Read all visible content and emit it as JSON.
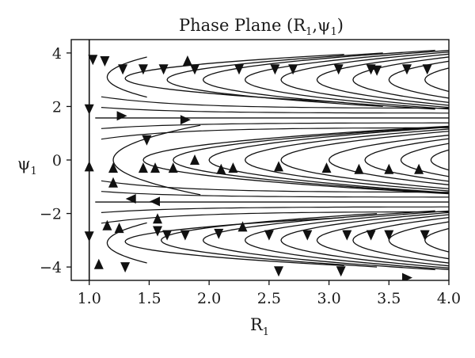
{
  "chart_data": {
    "type": "streamplot",
    "title_parts": [
      "Phase Plane (R",
      "1",
      ",ψ",
      "1",
      ")"
    ],
    "xlabel_parts": [
      "R",
      "1"
    ],
    "ylabel_parts": [
      "ψ",
      "1"
    ],
    "xlim": [
      0.85,
      4.0
    ],
    "ylim": [
      -4.5,
      4.5
    ],
    "xticks": [
      1.0,
      1.5,
      2.0,
      2.5,
      3.0,
      3.5,
      4.0
    ],
    "xtick_labels": [
      "1.0",
      "1.5",
      "2.0",
      "2.5",
      "3.0",
      "3.5",
      "4.0"
    ],
    "yticks": [
      4,
      2,
      0,
      -2,
      -4
    ],
    "ytick_labels": [
      "4",
      "2",
      "0",
      "−2",
      "−4"
    ],
    "grid": false,
    "line_color": "#111111",
    "separatrices_psi": [
      1.5708,
      -1.5708
    ],
    "vertical_line_r": 1.0,
    "streamlines": [
      {
        "shape": "parabola",
        "vertex": [
          1.15,
          3.1
        ],
        "kr": 0.0,
        "b": 0.95,
        "spread": 0.75,
        "dir": "down"
      },
      {
        "shape": "parabola",
        "vertex": [
          1.3,
          3.05
        ],
        "kr": 1.2,
        "b": 1.1,
        "spread": 0.9,
        "dir": "down"
      },
      {
        "shape": "parabola",
        "vertex": [
          1.65,
          3.0
        ],
        "kr": 1.0,
        "b": 1.2,
        "spread": 1.0,
        "dir": "down"
      },
      {
        "shape": "parabola",
        "vertex": [
          1.95,
          3.0
        ],
        "kr": 0.9,
        "b": 1.25,
        "spread": 1.1,
        "dir": "down"
      },
      {
        "shape": "parabola",
        "vertex": [
          2.3,
          3.0
        ],
        "kr": 0.8,
        "b": 1.3,
        "spread": 1.2,
        "dir": "down"
      },
      {
        "shape": "parabola",
        "vertex": [
          2.6,
          3.0
        ],
        "kr": 0.75,
        "b": 1.35,
        "spread": 1.25,
        "dir": "down"
      },
      {
        "shape": "parabola",
        "vertex": [
          2.9,
          3.0
        ],
        "kr": 0.7,
        "b": 1.4,
        "spread": 1.3,
        "dir": "down"
      },
      {
        "shape": "parabola",
        "vertex": [
          3.2,
          3.0
        ],
        "kr": 0.65,
        "b": 1.45,
        "spread": 1.35,
        "dir": "down"
      },
      {
        "shape": "parabola",
        "vertex": [
          3.5,
          3.0
        ],
        "kr": 0.6,
        "b": 1.45,
        "spread": 1.4,
        "dir": "down"
      },
      {
        "shape": "parabola",
        "vertex": [
          3.8,
          3.0
        ],
        "kr": 0.6,
        "b": 1.45,
        "spread": 1.4,
        "dir": "down"
      },
      {
        "shape": "parabola",
        "vertex": [
          1.2,
          0.0
        ],
        "kr": 0.0,
        "b": 1.3,
        "spread": 1.3,
        "dir": "up"
      },
      {
        "shape": "parabola",
        "vertex": [
          1.45,
          0.0
        ],
        "kr": 1.0,
        "b": 1.35,
        "spread": 1.3,
        "dir": "up"
      },
      {
        "shape": "parabola",
        "vertex": [
          1.7,
          0.0
        ],
        "kr": 0.95,
        "b": 1.4,
        "spread": 1.35,
        "dir": "up"
      },
      {
        "shape": "parabola",
        "vertex": [
          2.0,
          0.0
        ],
        "kr": 0.85,
        "b": 1.45,
        "spread": 1.4,
        "dir": "up"
      },
      {
        "shape": "parabola",
        "vertex": [
          2.3,
          0.0
        ],
        "kr": 0.8,
        "b": 1.45,
        "spread": 1.4,
        "dir": "up"
      },
      {
        "shape": "parabola",
        "vertex": [
          2.6,
          0.0
        ],
        "kr": 0.75,
        "b": 1.45,
        "spread": 1.4,
        "dir": "up"
      },
      {
        "shape": "parabola",
        "vertex": [
          3.0,
          0.0
        ],
        "kr": 0.7,
        "b": 1.45,
        "spread": 1.4,
        "dir": "up"
      },
      {
        "shape": "parabola",
        "vertex": [
          3.3,
          0.0
        ],
        "kr": 0.65,
        "b": 1.45,
        "spread": 1.4,
        "dir": "up"
      },
      {
        "shape": "parabola",
        "vertex": [
          3.6,
          0.0
        ],
        "kr": 0.6,
        "b": 1.45,
        "spread": 1.4,
        "dir": "up"
      },
      {
        "shape": "parabola",
        "vertex": [
          3.85,
          0.0
        ],
        "kr": 0.6,
        "b": 1.45,
        "spread": 1.4,
        "dir": "up"
      },
      {
        "shape": "parabola",
        "vertex": [
          1.15,
          -3.1
        ],
        "kr": 0.0,
        "b": 0.95,
        "spread": 0.75,
        "dir": "down"
      },
      {
        "shape": "parabola",
        "vertex": [
          1.3,
          -3.05
        ],
        "kr": 1.2,
        "b": 1.1,
        "spread": 0.9,
        "dir": "down"
      },
      {
        "shape": "parabola",
        "vertex": [
          1.6,
          -3.0
        ],
        "kr": 1.0,
        "b": 1.2,
        "spread": 1.0,
        "dir": "down"
      },
      {
        "shape": "parabola",
        "vertex": [
          1.95,
          -3.0
        ],
        "kr": 0.9,
        "b": 1.25,
        "spread": 1.1,
        "dir": "down"
      },
      {
        "shape": "parabola",
        "vertex": [
          2.3,
          -3.0
        ],
        "kr": 0.8,
        "b": 1.3,
        "spread": 1.2,
        "dir": "down"
      },
      {
        "shape": "parabola",
        "vertex": [
          2.6,
          -3.0
        ],
        "kr": 0.75,
        "b": 1.35,
        "spread": 1.25,
        "dir": "down"
      },
      {
        "shape": "parabola",
        "vertex": [
          2.9,
          -3.0
        ],
        "kr": 0.7,
        "b": 1.4,
        "spread": 1.3,
        "dir": "down"
      },
      {
        "shape": "parabola",
        "vertex": [
          3.2,
          -3.0
        ],
        "kr": 0.65,
        "b": 1.45,
        "spread": 1.35,
        "dir": "down"
      },
      {
        "shape": "parabola",
        "vertex": [
          3.5,
          -3.0
        ],
        "kr": 0.6,
        "b": 1.45,
        "spread": 1.4,
        "dir": "down"
      },
      {
        "shape": "parabola",
        "vertex": [
          3.8,
          -3.0
        ],
        "kr": 0.6,
        "b": 1.45,
        "spread": 1.4,
        "dir": "down"
      }
    ],
    "arrows": [
      {
        "r": 1.03,
        "psi": 3.75,
        "dir": "down"
      },
      {
        "r": 1.13,
        "psi": 3.7,
        "dir": "down"
      },
      {
        "r": 1.28,
        "psi": 3.4,
        "dir": "down"
      },
      {
        "r": 1.45,
        "psi": 3.4,
        "dir": "down"
      },
      {
        "r": 1.62,
        "psi": 3.4,
        "dir": "down"
      },
      {
        "r": 1.82,
        "psi": 3.7,
        "dir": "up"
      },
      {
        "r": 1.88,
        "psi": 3.4,
        "dir": "down"
      },
      {
        "r": 2.25,
        "psi": 3.4,
        "dir": "down"
      },
      {
        "r": 2.55,
        "psi": 3.4,
        "dir": "down"
      },
      {
        "r": 2.7,
        "psi": 3.4,
        "dir": "down"
      },
      {
        "r": 3.08,
        "psi": 3.4,
        "dir": "down"
      },
      {
        "r": 3.35,
        "psi": 3.4,
        "dir": "down"
      },
      {
        "r": 3.4,
        "psi": 3.35,
        "dir": "down"
      },
      {
        "r": 3.65,
        "psi": 3.4,
        "dir": "down"
      },
      {
        "r": 3.82,
        "psi": 3.4,
        "dir": "down"
      },
      {
        "r": 1.0,
        "psi": 1.9,
        "dir": "down"
      },
      {
        "r": 1.27,
        "psi": 1.65,
        "dir": "right"
      },
      {
        "r": 1.8,
        "psi": 1.5,
        "dir": "right"
      },
      {
        "r": 1.48,
        "psi": 0.75,
        "dir": "down"
      },
      {
        "r": 1.0,
        "psi": -0.25,
        "dir": "up"
      },
      {
        "r": 1.2,
        "psi": -0.3,
        "dir": "up"
      },
      {
        "r": 1.45,
        "psi": -0.3,
        "dir": "up"
      },
      {
        "r": 1.55,
        "psi": -0.3,
        "dir": "up"
      },
      {
        "r": 1.7,
        "psi": -0.3,
        "dir": "up"
      },
      {
        "r": 1.88,
        "psi": 0.0,
        "dir": "up"
      },
      {
        "r": 2.1,
        "psi": -0.35,
        "dir": "up"
      },
      {
        "r": 2.2,
        "psi": -0.3,
        "dir": "up"
      },
      {
        "r": 2.58,
        "psi": -0.25,
        "dir": "up"
      },
      {
        "r": 2.98,
        "psi": -0.3,
        "dir": "up"
      },
      {
        "r": 3.25,
        "psi": -0.35,
        "dir": "up"
      },
      {
        "r": 3.5,
        "psi": -0.35,
        "dir": "up"
      },
      {
        "r": 3.75,
        "psi": -0.35,
        "dir": "up"
      },
      {
        "r": 1.2,
        "psi": -0.85,
        "dir": "up"
      },
      {
        "r": 1.35,
        "psi": -1.45,
        "dir": "left"
      },
      {
        "r": 1.55,
        "psi": -1.55,
        "dir": "left"
      },
      {
        "r": 1.0,
        "psi": -2.85,
        "dir": "down"
      },
      {
        "r": 1.15,
        "psi": -2.45,
        "dir": "up"
      },
      {
        "r": 1.25,
        "psi": -2.55,
        "dir": "up"
      },
      {
        "r": 1.57,
        "psi": -2.2,
        "dir": "up"
      },
      {
        "r": 1.57,
        "psi": -2.65,
        "dir": "down"
      },
      {
        "r": 1.65,
        "psi": -2.8,
        "dir": "down"
      },
      {
        "r": 1.8,
        "psi": -2.8,
        "dir": "down"
      },
      {
        "r": 2.08,
        "psi": -2.75,
        "dir": "down"
      },
      {
        "r": 2.28,
        "psi": -2.5,
        "dir": "up"
      },
      {
        "r": 2.5,
        "psi": -2.8,
        "dir": "down"
      },
      {
        "r": 2.82,
        "psi": -2.8,
        "dir": "down"
      },
      {
        "r": 3.15,
        "psi": -2.8,
        "dir": "down"
      },
      {
        "r": 3.35,
        "psi": -2.8,
        "dir": "down"
      },
      {
        "r": 3.5,
        "psi": -2.8,
        "dir": "down"
      },
      {
        "r": 3.8,
        "psi": -2.8,
        "dir": "down"
      },
      {
        "r": 1.08,
        "psi": -3.9,
        "dir": "up"
      },
      {
        "r": 1.3,
        "psi": -4.0,
        "dir": "down"
      },
      {
        "r": 2.58,
        "psi": -4.15,
        "dir": "down"
      },
      {
        "r": 3.1,
        "psi": -4.15,
        "dir": "down"
      },
      {
        "r": 3.65,
        "psi": -4.4,
        "dir": "right"
      }
    ]
  }
}
